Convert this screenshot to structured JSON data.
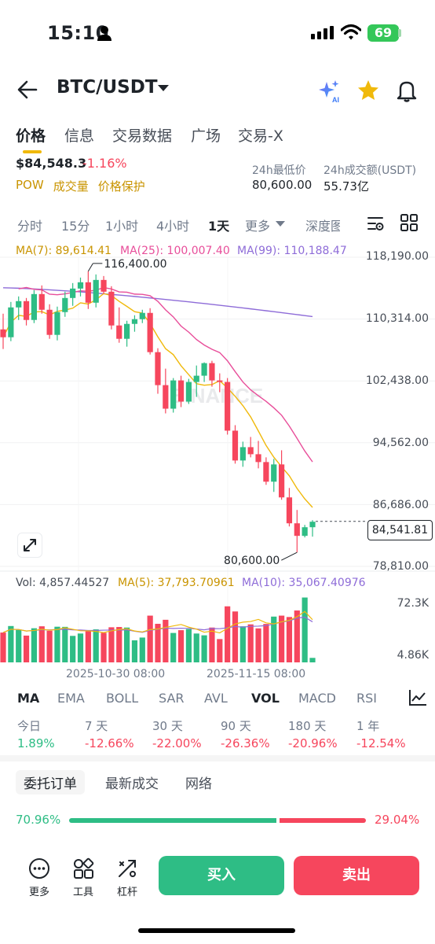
{
  "status_bar": {
    "time": "15:10",
    "battery": "69"
  },
  "header": {
    "title": "BTC/USDT"
  },
  "tabs": [
    "价格",
    "信息",
    "交易数据",
    "广场",
    "交易-X"
  ],
  "price": {
    "last": "$84,548.3",
    "change": "-1.16%"
  },
  "tags": [
    "POW",
    "成交量",
    "价格保护"
  ],
  "stats": {
    "low_label": "24h最低价",
    "low_value": "80,600.00",
    "turnover_label": "24h成交额(USDT)",
    "turnover_value": "55.73亿"
  },
  "intervals": [
    "分时",
    "15分",
    "1小时",
    "4小时",
    "1天",
    "更多",
    "深度图"
  ],
  "ma_legend": {
    "ma7": "MA(7): 89,614.41",
    "ma25": "MA(25): 100,007.40",
    "ma99": "MA(99): 110,188.47"
  },
  "y_axis": [
    "118,190.00",
    "110,314.00",
    "102,438.00",
    "94,562.00",
    "86,686.00",
    "78,810.00"
  ],
  "high_label": "116,400.00",
  "low_label": "80,600.00",
  "last_price_tag": "84,541.81",
  "watermark": "BINANCE",
  "vol_legend": {
    "vol": "Vol: 4,857.44527",
    "ma5": "MA(5): 37,793.70961",
    "ma10": "MA(10): 35,067.40976"
  },
  "vol_axis": [
    "72.3K",
    "4.86K"
  ],
  "dates": [
    "2025-10-30 08:00",
    "2025-11-15 08:00"
  ],
  "indicators": [
    "MA",
    "EMA",
    "BOLL",
    "SAR",
    "AVL",
    "VOL",
    "MACD",
    "RSI"
  ],
  "performance": [
    {
      "label": "今日",
      "value": "1.89%"
    },
    {
      "label": "7 天",
      "value": "-12.66%"
    },
    {
      "label": "30 天",
      "value": "-22.00%"
    },
    {
      "label": "90 天",
      "value": "-26.36%"
    },
    {
      "label": "180 天",
      "value": "-20.96%"
    },
    {
      "label": "1 年",
      "value": "-12.54%"
    }
  ],
  "order_tabs": [
    "委托订单",
    "最新成交",
    "网络"
  ],
  "ratio": {
    "buy": "70.96%",
    "sell": "29.04%",
    "buy_fraction": 0.7096
  },
  "bottom": {
    "more": "更多",
    "tools": "工具",
    "leverage": "杠杆",
    "buy": "买入",
    "sell": "卖出"
  },
  "colors": {
    "up": "#2ebd85",
    "down": "#f6465d",
    "ma7": "#f0b90b",
    "ma25": "#e84e9a",
    "ma99": "#8e6cd8"
  },
  "chart_data": {
    "type": "candlestick",
    "interval": "1天",
    "ylim": [
      78810,
      118190
    ],
    "yticks": [
      118190,
      110314,
      102438,
      94562,
      86686,
      78810
    ],
    "high_marker": 116400,
    "low_marker": 80600,
    "last_price": 84541.81,
    "candles": [
      [
        109000,
        111000,
        106500,
        108000
      ],
      [
        108000,
        112500,
        107500,
        111800
      ],
      [
        111800,
        113200,
        110200,
        112600
      ],
      [
        112600,
        113000,
        109500,
        110200
      ],
      [
        110200,
        114000,
        109800,
        113500
      ],
      [
        113500,
        114600,
        111000,
        111500
      ],
      [
        111500,
        112200,
        107800,
        108300
      ],
      [
        108300,
        111900,
        107600,
        111200
      ],
      [
        111200,
        113800,
        110600,
        113000
      ],
      [
        113000,
        114900,
        112000,
        114200
      ],
      [
        114200,
        115600,
        113200,
        115000
      ],
      [
        115000,
        116400,
        111600,
        112400
      ],
      [
        112400,
        116000,
        111800,
        115300
      ],
      [
        115300,
        115800,
        113500,
        113800
      ],
      [
        113800,
        114500,
        109000,
        109500
      ],
      [
        109500,
        111800,
        107300,
        107800
      ],
      [
        107800,
        110100,
        106800,
        109700
      ],
      [
        109700,
        110800,
        108700,
        110300
      ],
      [
        110300,
        111500,
        109800,
        111100
      ],
      [
        111100,
        111700,
        105800,
        106100
      ],
      [
        106100,
        106600,
        100800,
        101900
      ],
      [
        101900,
        104000,
        98300,
        98900
      ],
      [
        98900,
        102800,
        98400,
        102500
      ],
      [
        102500,
        103100,
        99100,
        99800
      ],
      [
        99800,
        102700,
        99500,
        102300
      ],
      [
        102300,
        104400,
        100400,
        103100
      ],
      [
        103100,
        104800,
        102300,
        104700
      ],
      [
        104700,
        105000,
        101700,
        102500
      ],
      [
        102500,
        103400,
        101000,
        102300
      ],
      [
        102300,
        102800,
        95600,
        96100
      ],
      [
        96100,
        96800,
        91900,
        92300
      ],
      [
        92300,
        94700,
        91500,
        94000
      ],
      [
        94000,
        95300,
        92700,
        93100
      ],
      [
        93100,
        94800,
        91300,
        92100
      ],
      [
        92100,
        92700,
        89200,
        89600
      ],
      [
        89600,
        92500,
        88300,
        91800
      ],
      [
        91800,
        93600,
        87300,
        87600
      ],
      [
        87600,
        88800,
        83900,
        84300
      ],
      [
        84300,
        86000,
        80600,
        82700
      ],
      [
        82700,
        84100,
        82500,
        83800
      ],
      [
        83800,
        84700,
        82600,
        84500
      ]
    ],
    "volume_range": [
      4860,
      72300
    ]
  }
}
